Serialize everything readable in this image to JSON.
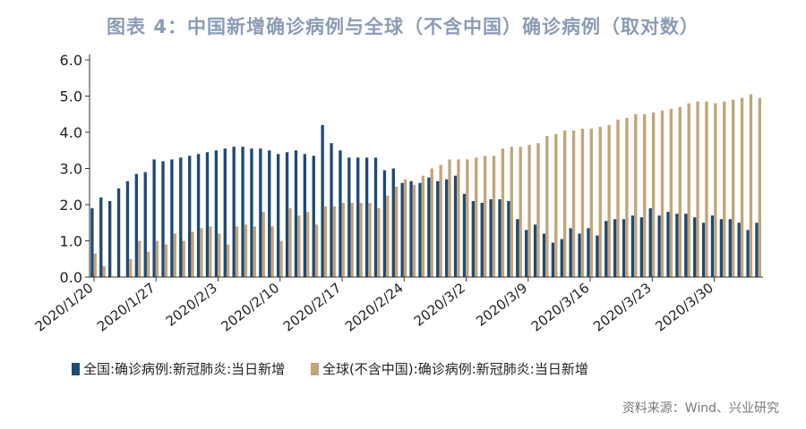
{
  "page_title": "图表 4：中国新增确诊病例与全球（不含中国）确诊病例（取对数）",
  "source_note": "资料来源：Wind、兴业研究",
  "colors": {
    "china": "#1f4a75",
    "global": "#c2a57a",
    "axis": "#333333",
    "title": "#8a9cb5"
  },
  "chart_data": {
    "type": "bar",
    "title": "图表 4：中国新增确诊病例与全球（不含中国）确诊病例（取对数）",
    "xlabel": "",
    "ylabel": "",
    "ylim": [
      0,
      6
    ],
    "y_ticks": [
      "0.0",
      "1.0",
      "2.0",
      "3.0",
      "4.0",
      "5.0",
      "6.0"
    ],
    "x_tick_labels": [
      "2020/1/20",
      "2020/1/27",
      "2020/2/3",
      "2020/2/10",
      "2020/2/17",
      "2020/2/24",
      "2020/3/2",
      "2020/3/9",
      "2020/3/16",
      "2020/3/23",
      "2020/3/30"
    ],
    "x_tick_every": 7,
    "categories": [
      "2020/1/20",
      "2020/1/21",
      "2020/1/22",
      "2020/1/23",
      "2020/1/24",
      "2020/1/25",
      "2020/1/26",
      "2020/1/27",
      "2020/1/28",
      "2020/1/29",
      "2020/1/30",
      "2020/1/31",
      "2020/2/1",
      "2020/2/2",
      "2020/2/3",
      "2020/2/4",
      "2020/2/5",
      "2020/2/6",
      "2020/2/7",
      "2020/2/8",
      "2020/2/9",
      "2020/2/10",
      "2020/2/11",
      "2020/2/12",
      "2020/2/13",
      "2020/2/14",
      "2020/2/15",
      "2020/2/16",
      "2020/2/17",
      "2020/2/18",
      "2020/2/19",
      "2020/2/20",
      "2020/2/21",
      "2020/2/22",
      "2020/2/23",
      "2020/2/24",
      "2020/2/25",
      "2020/2/26",
      "2020/2/27",
      "2020/2/28",
      "2020/2/29",
      "2020/3/1",
      "2020/3/2",
      "2020/3/3",
      "2020/3/4",
      "2020/3/5",
      "2020/3/6",
      "2020/3/7",
      "2020/3/8",
      "2020/3/9",
      "2020/3/10",
      "2020/3/11",
      "2020/3/12",
      "2020/3/13",
      "2020/3/14",
      "2020/3/15",
      "2020/3/16",
      "2020/3/17",
      "2020/3/18",
      "2020/3/19",
      "2020/3/20",
      "2020/3/21",
      "2020/3/22",
      "2020/3/23",
      "2020/3/24",
      "2020/3/25",
      "2020/3/26",
      "2020/3/27",
      "2020/3/28",
      "2020/3/29",
      "2020/3/30",
      "2020/3/31",
      "2020/4/1",
      "2020/4/2",
      "2020/4/3",
      "2020/4/4"
    ],
    "series": [
      {
        "name": "全国:确诊病例:新冠肺炎:当日新增",
        "values": [
          1.9,
          2.2,
          2.1,
          2.45,
          2.65,
          2.85,
          2.9,
          3.25,
          3.2,
          3.25,
          3.3,
          3.35,
          3.4,
          3.45,
          3.5,
          3.55,
          3.6,
          3.6,
          3.55,
          3.55,
          3.5,
          3.4,
          3.45,
          3.5,
          3.4,
          3.35,
          4.2,
          3.7,
          3.5,
          3.3,
          3.3,
          3.3,
          3.3,
          2.95,
          3.0,
          2.6,
          2.65,
          2.6,
          2.75,
          2.65,
          2.7,
          2.8,
          2.3,
          2.1,
          2.05,
          2.15,
          2.15,
          2.1,
          1.6,
          1.3,
          1.45,
          1.2,
          0.95,
          1.05,
          1.35,
          1.2,
          1.35,
          1.15,
          1.55,
          1.6,
          1.6,
          1.7,
          1.65,
          1.9,
          1.7,
          1.8,
          1.75,
          1.75,
          1.65,
          1.5,
          1.7,
          1.6,
          1.6,
          1.5,
          1.3,
          1.5
        ]
      },
      {
        "name": "全球(不含中国):确诊病例:新冠肺炎:当日新增",
        "values": [
          0.65,
          0.3,
          0.0,
          0.0,
          0.5,
          1.0,
          0.7,
          1.0,
          0.9,
          1.2,
          1.0,
          1.25,
          1.35,
          1.4,
          1.2,
          0.9,
          1.4,
          1.45,
          1.4,
          1.8,
          1.4,
          1.0,
          1.9,
          1.7,
          1.8,
          1.45,
          1.95,
          1.95,
          2.05,
          2.05,
          2.05,
          2.05,
          1.9,
          2.25,
          2.5,
          2.7,
          2.55,
          2.8,
          3.0,
          3.1,
          3.25,
          3.25,
          3.25,
          3.3,
          3.35,
          3.35,
          3.55,
          3.6,
          3.6,
          3.65,
          3.7,
          3.9,
          3.95,
          4.05,
          4.05,
          4.1,
          4.1,
          4.15,
          4.2,
          4.35,
          4.4,
          4.5,
          4.5,
          4.55,
          4.6,
          4.65,
          4.7,
          4.8,
          4.85,
          4.85,
          4.8,
          4.85,
          4.9,
          4.95,
          5.05,
          4.95
        ]
      }
    ],
    "legend": "bottom"
  }
}
